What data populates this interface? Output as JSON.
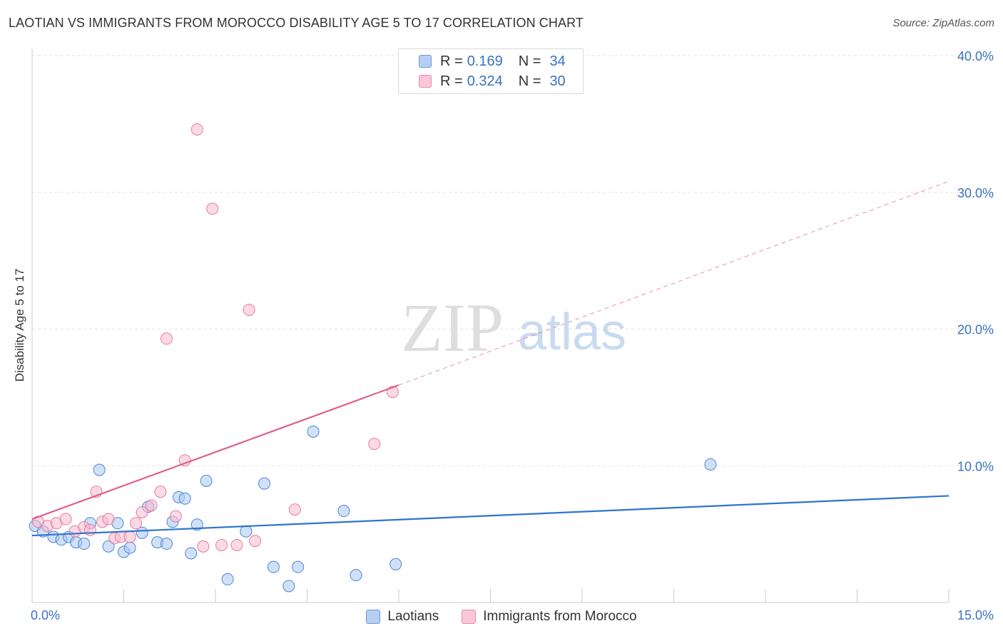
{
  "chart_data": {
    "type": "scatter",
    "title": "LAOTIAN VS IMMIGRANTS FROM MOROCCO DISABILITY AGE 5 TO 17 CORRELATION CHART",
    "source": "Source: ZipAtlas.com",
    "ylabel": "Disability Age 5 to 17",
    "xlabel": "",
    "xlim": [
      0,
      15
    ],
    "ylim": [
      0,
      40
    ],
    "x_tick_labels": [
      "0.0%",
      "15.0%"
    ],
    "y_tick_values": [
      10,
      20,
      30,
      40
    ],
    "y_tick_labels": [
      "10.0%",
      "20.0%",
      "30.0%",
      "40.0%"
    ],
    "watermark": "ZIPatlas",
    "series": [
      {
        "name": "Laotians",
        "r_label": "R =",
        "r_value": "0.169",
        "n_label": "N =",
        "n_value": "34",
        "fill": "#a9c8f0",
        "stroke": "#4a86d6",
        "trend_color": "#2f74cc",
        "trend": {
          "x0": 0,
          "y0": 4.9,
          "x1": 15,
          "y1": 7.8
        },
        "points": [
          [
            0.05,
            5.6
          ],
          [
            0.18,
            5.2
          ],
          [
            0.35,
            4.8
          ],
          [
            0.48,
            4.6
          ],
          [
            0.6,
            4.8
          ],
          [
            0.72,
            4.4
          ],
          [
            0.85,
            4.3
          ],
          [
            0.95,
            5.8
          ],
          [
            1.1,
            9.7
          ],
          [
            1.25,
            4.1
          ],
          [
            1.4,
            5.8
          ],
          [
            1.5,
            3.7
          ],
          [
            1.6,
            4.0
          ],
          [
            1.8,
            5.1
          ],
          [
            1.9,
            7.0
          ],
          [
            2.05,
            4.4
          ],
          [
            2.2,
            4.3
          ],
          [
            2.3,
            5.9
          ],
          [
            2.4,
            7.7
          ],
          [
            2.5,
            7.6
          ],
          [
            2.6,
            3.6
          ],
          [
            2.7,
            5.7
          ],
          [
            2.85,
            8.9
          ],
          [
            3.2,
            1.7
          ],
          [
            3.5,
            5.2
          ],
          [
            3.8,
            8.7
          ],
          [
            3.95,
            2.6
          ],
          [
            4.2,
            1.2
          ],
          [
            4.35,
            2.6
          ],
          [
            4.6,
            12.5
          ],
          [
            5.1,
            6.7
          ],
          [
            5.3,
            2.0
          ],
          [
            5.95,
            2.8
          ],
          [
            11.1,
            10.1
          ]
        ]
      },
      {
        "name": "Immigrants from Morocco",
        "r_label": "R =",
        "r_value": "0.324",
        "n_label": "N =",
        "n_value": "30",
        "fill": "#f7bcd0",
        "stroke": "#e77aa0",
        "trend_color": "#e0608c",
        "trend": {
          "x0": 0,
          "y0": 6.1,
          "x1": 6,
          "y1": 15.9
        },
        "trend_dashed": {
          "x0": 6,
          "y0": 15.9,
          "x1": 15,
          "y1": 30.8
        },
        "points": [
          [
            0.1,
            5.9
          ],
          [
            0.25,
            5.6
          ],
          [
            0.4,
            5.8
          ],
          [
            0.55,
            6.1
          ],
          [
            0.7,
            5.2
          ],
          [
            0.85,
            5.5
          ],
          [
            0.95,
            5.3
          ],
          [
            1.05,
            8.1
          ],
          [
            1.15,
            5.9
          ],
          [
            1.25,
            6.1
          ],
          [
            1.35,
            4.7
          ],
          [
            1.45,
            4.8
          ],
          [
            1.6,
            4.8
          ],
          [
            1.7,
            5.8
          ],
          [
            1.8,
            6.6
          ],
          [
            1.95,
            7.1
          ],
          [
            2.1,
            8.1
          ],
          [
            2.2,
            19.3
          ],
          [
            2.35,
            6.3
          ],
          [
            2.5,
            10.4
          ],
          [
            2.7,
            34.6
          ],
          [
            2.8,
            4.1
          ],
          [
            2.95,
            28.8
          ],
          [
            3.1,
            4.2
          ],
          [
            3.35,
            4.2
          ],
          [
            3.55,
            21.4
          ],
          [
            3.65,
            4.5
          ],
          [
            4.3,
            6.8
          ],
          [
            5.6,
            11.6
          ],
          [
            5.9,
            15.4
          ]
        ]
      }
    ]
  }
}
